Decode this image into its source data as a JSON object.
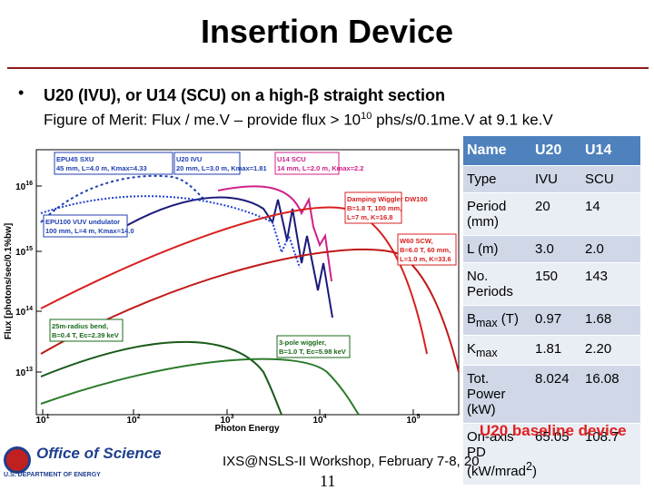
{
  "title": "Insertion Device",
  "bullet": "U20 (IVU), or U14 (SCU) on a high-β straight section",
  "subline": {
    "before": "Figure of Merit: Flux / me.V – provide flux > 10",
    "sup": "10",
    "after": " phs/s/0.1me.V at  9.1 ke.V"
  },
  "figure": {
    "y_label": "Flux [photons/sec/0.1%bw]",
    "x_label": "Photon Energy",
    "xticks": [
      {
        "base": "10",
        "exp": "1"
      },
      {
        "base": "10",
        "exp": "2"
      },
      {
        "base": "10",
        "exp": "3"
      },
      {
        "base": "10",
        "exp": "4"
      },
      {
        "base": "10",
        "exp": "5"
      }
    ],
    "yticks": [
      {
        "base": "10",
        "exp": "16"
      },
      {
        "base": "10",
        "exp": "15"
      },
      {
        "base": "10",
        "exp": "14"
      },
      {
        "base": "10",
        "exp": "13"
      }
    ],
    "annotations": [
      {
        "lines": [
          "EPU45 SXU",
          "45 mm, L=4.0 m, Kmax=4.33"
        ]
      },
      {
        "lines": [
          "U20 IVU",
          "20 mm, L=3.0 m, Kmax=1.81"
        ]
      },
      {
        "lines": [
          "U14 SCU",
          "14 mm, L=2.0 m, Kmax=2.2"
        ]
      },
      {
        "lines": [
          "EPU100 VUV undulator",
          "100 mm, L=4 m, Kmax=14.0"
        ]
      },
      {
        "lines": [
          "Damping Wiggler DW100",
          "B=1.8 T, 100 mm,",
          "L=7 m, K=16.8"
        ]
      },
      {
        "lines": [
          "W60 SCW,",
          "B=6.0 T, 60 mm,",
          "L=1.0 m, K=33.6"
        ]
      },
      {
        "lines": [
          "25m-radius bend,",
          "B=0.4 T, Ec=2.39 keV"
        ]
      },
      {
        "lines": [
          "3-pole wiggler,",
          "B=1.0 T, Ec=5.98 keV"
        ]
      }
    ]
  },
  "table": {
    "header": [
      "Name",
      "U20",
      "U14"
    ],
    "rows": [
      [
        "Type",
        "IVU",
        "SCU"
      ],
      [
        "Period (mm)",
        "20",
        "14"
      ],
      [
        "L (m)",
        "3.0",
        "2.0"
      ],
      [
        "No. Periods",
        "150",
        "143"
      ],
      [
        [
          "B",
          "max",
          " (T)"
        ],
        "0.97",
        "1.68"
      ],
      [
        [
          "K",
          "max"
        ],
        "1.81",
        "2.20"
      ],
      [
        "Tot. Power (kW)",
        "8.024",
        "16.08"
      ],
      [
        [
          "On-axis PD (kW/mrad",
          "2",
          ")"
        ],
        "65.05",
        "108.7"
      ]
    ]
  },
  "overlay": "U20 baseline device",
  "footer": {
    "logo_title": "Office of Science",
    "logo_sub": "U.S. DEPARTMENT OF ENERGY",
    "workshop": "IXS@NSLS-II Workshop, February 7-8, 20",
    "page": "11"
  }
}
